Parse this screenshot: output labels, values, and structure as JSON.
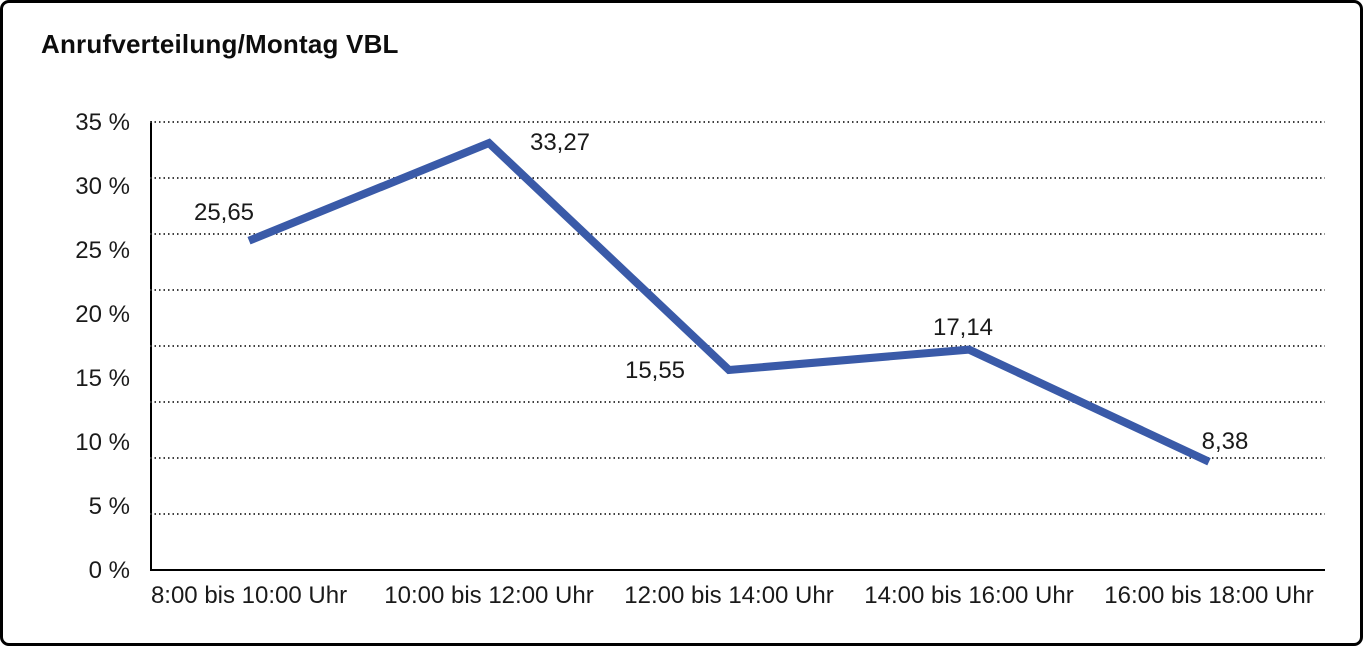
{
  "title": "Anrufverteilung/Montag VBL",
  "chart_data": {
    "type": "line",
    "title": "Anrufverteilung/Montag VBL",
    "categories": [
      "8:00 bis 10:00 Uhr",
      "10:00 bis 12:00 Uhr",
      "12:00 bis 14:00 Uhr",
      "14:00 bis 16:00 Uhr",
      "16:00 bis 18:00 Uhr"
    ],
    "values": [
      25.65,
      33.27,
      15.55,
      17.14,
      8.38
    ],
    "value_labels": [
      "25,65",
      "33,27",
      "15,55",
      "17,14",
      "8,38"
    ],
    "y_tick_labels": [
      "35 %",
      "30 %",
      "25 %",
      "20 %",
      "15 %",
      "10 %",
      "5 %",
      "0 %"
    ],
    "ylim": [
      0,
      35
    ],
    "xlabel": "",
    "ylabel": "",
    "grid": "horizontal-dotted",
    "legend": "none"
  },
  "colors": {
    "line": "#3A5AA8",
    "text": "#1a1a1a",
    "grid_dots": "#3f3f3f",
    "axis": "#000000",
    "frame_border": "#000000",
    "background": "#ffffff"
  }
}
